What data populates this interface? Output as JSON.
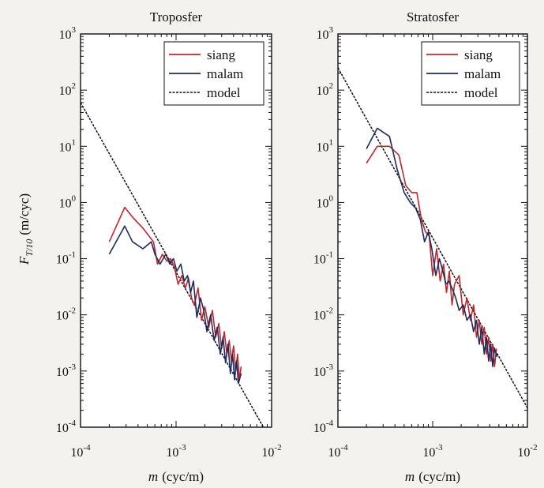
{
  "y_axis_label": {
    "symbol": "F",
    "subscript": "T/10",
    "unit": "(m/cyc)"
  },
  "chart_data": [
    {
      "type": "line",
      "title": "Troposfer",
      "xlabel": {
        "symbol": "m",
        "unit": "(cyc/m)"
      },
      "x_scale": "log",
      "y_scale": "log",
      "xlim": [
        0.0001,
        0.01
      ],
      "ylim": [
        0.0001,
        1000
      ],
      "x_ticks": [
        {
          "mantissa": "10",
          "exponent": "-4"
        },
        {
          "mantissa": "10",
          "exponent": "-3"
        },
        {
          "mantissa": "10",
          "exponent": "-2"
        }
      ],
      "y_ticks": [
        {
          "mantissa": "10",
          "exponent": "-4"
        },
        {
          "mantissa": "10",
          "exponent": "-3"
        },
        {
          "mantissa": "10",
          "exponent": "-2"
        },
        {
          "mantissa": "10",
          "exponent": "-1"
        },
        {
          "mantissa": "10",
          "exponent": "0"
        },
        {
          "mantissa": "10",
          "exponent": "1"
        },
        {
          "mantissa": "10",
          "exponent": "2"
        },
        {
          "mantissa": "10",
          "exponent": "3"
        }
      ],
      "legend": {
        "position": "top-right",
        "entries": [
          "siang",
          "malam",
          "model"
        ]
      },
      "series": [
        {
          "name": "siang",
          "color": "#c0262b",
          "style": "solid",
          "x": [
            0.0002,
            0.00029,
            0.00035,
            0.00045,
            0.00058,
            0.00064,
            0.00072,
            0.0008,
            0.00088,
            0.00096,
            0.00105,
            0.00115,
            0.00125,
            0.00135,
            0.00145,
            0.00155,
            0.0017,
            0.00185,
            0.002,
            0.0022,
            0.0024,
            0.0026,
            0.0028,
            0.003,
            0.0032,
            0.0034,
            0.0036,
            0.0038,
            0.004,
            0.0042,
            0.0044,
            0.0046,
            0.0048
          ],
          "y": [
            0.2,
            0.82,
            0.55,
            0.35,
            0.2,
            0.08,
            0.12,
            0.09,
            0.1,
            0.07,
            0.035,
            0.05,
            0.03,
            0.045,
            0.02,
            0.015,
            0.03,
            0.008,
            0.014,
            0.006,
            0.012,
            0.004,
            0.007,
            0.0025,
            0.005,
            0.002,
            0.0035,
            0.0015,
            0.0028,
            0.001,
            0.002,
            0.0007,
            0.0012
          ]
        },
        {
          "name": "malam",
          "color": "#1d2a5c",
          "style": "solid",
          "x": [
            0.0002,
            0.00029,
            0.00035,
            0.00045,
            0.00055,
            0.0006,
            0.00068,
            0.00078,
            0.00086,
            0.00094,
            0.00102,
            0.00112,
            0.00122,
            0.00132,
            0.00142,
            0.00152,
            0.00165,
            0.0018,
            0.00195,
            0.0021,
            0.0023,
            0.0025,
            0.0027,
            0.0029,
            0.0031,
            0.0033,
            0.0035,
            0.0037,
            0.0039,
            0.0041,
            0.0043,
            0.0045,
            0.0048
          ],
          "y": [
            0.12,
            0.38,
            0.2,
            0.15,
            0.2,
            0.12,
            0.08,
            0.12,
            0.08,
            0.1,
            0.06,
            0.08,
            0.04,
            0.05,
            0.025,
            0.04,
            0.009,
            0.02,
            0.012,
            0.005,
            0.01,
            0.0035,
            0.006,
            0.002,
            0.004,
            0.0014,
            0.003,
            0.0009,
            0.002,
            0.0007,
            0.0015,
            0.0006,
            0.0009
          ]
        },
        {
          "name": "model",
          "color": "#111111",
          "style": "dashed",
          "x": [
            0.0001,
            0.0082
          ],
          "y": [
            60,
            0.0001
          ]
        }
      ]
    },
    {
      "type": "line",
      "title": "Stratosfer",
      "xlabel": {
        "symbol": "m",
        "unit": "(cyc/m)"
      },
      "x_scale": "log",
      "y_scale": "log",
      "xlim": [
        0.0001,
        0.01
      ],
      "ylim": [
        0.0001,
        1000
      ],
      "x_ticks": [
        {
          "mantissa": "10",
          "exponent": "-4"
        },
        {
          "mantissa": "10",
          "exponent": "-3"
        },
        {
          "mantissa": "10",
          "exponent": "-2"
        }
      ],
      "y_ticks": [
        {
          "mantissa": "10",
          "exponent": "-4"
        },
        {
          "mantissa": "10",
          "exponent": "-3"
        },
        {
          "mantissa": "10",
          "exponent": "-2"
        },
        {
          "mantissa": "10",
          "exponent": "-1"
        },
        {
          "mantissa": "10",
          "exponent": "0"
        },
        {
          "mantissa": "10",
          "exponent": "1"
        },
        {
          "mantissa": "10",
          "exponent": "2"
        },
        {
          "mantissa": "10",
          "exponent": "3"
        }
      ],
      "legend": {
        "position": "top-right",
        "entries": [
          "siang",
          "malam",
          "model"
        ]
      },
      "series": [
        {
          "name": "siang",
          "color": "#c0262b",
          "style": "solid",
          "x": [
            0.0002,
            0.00026,
            0.00035,
            0.00044,
            0.00052,
            0.0006,
            0.00068,
            0.00076,
            0.00084,
            0.00092,
            0.001,
            0.0011,
            0.0012,
            0.0013,
            0.0014,
            0.0015,
            0.0016,
            0.0017,
            0.0019,
            0.0021,
            0.0023,
            0.0025,
            0.0027,
            0.0029,
            0.0031,
            0.0033,
            0.0035,
            0.0037,
            0.0039,
            0.0041,
            0.0043,
            0.0045,
            0.0047
          ],
          "y": [
            5,
            10,
            10,
            7,
            2,
            1.5,
            1.5,
            0.5,
            0.3,
            0.25,
            0.05,
            0.15,
            0.04,
            0.08,
            0.025,
            0.06,
            0.015,
            0.035,
            0.05,
            0.01,
            0.02,
            0.008,
            0.015,
            0.004,
            0.008,
            0.003,
            0.006,
            0.002,
            0.004,
            0.0015,
            0.003,
            0.0012,
            0.0025
          ]
        },
        {
          "name": "malam",
          "color": "#1d2a5c",
          "style": "solid",
          "x": [
            0.0002,
            0.00026,
            0.00035,
            0.00042,
            0.0005,
            0.00058,
            0.00066,
            0.00074,
            0.00082,
            0.0009,
            0.00098,
            0.00108,
            0.00118,
            0.00128,
            0.00138,
            0.00148,
            0.0016,
            0.00175,
            0.0019,
            0.0021,
            0.0023,
            0.0025,
            0.0027,
            0.0029,
            0.0031,
            0.0033,
            0.0035,
            0.0037,
            0.0039,
            0.0041,
            0.0043,
            0.0045,
            0.0048
          ],
          "y": [
            9,
            21,
            15,
            4,
            1.5,
            1,
            0.8,
            0.5,
            0.2,
            0.3,
            0.15,
            0.05,
            0.1,
            0.06,
            0.035,
            0.04,
            0.03,
            0.02,
            0.012,
            0.015,
            0.008,
            0.01,
            0.005,
            0.008,
            0.003,
            0.006,
            0.002,
            0.004,
            0.0015,
            0.003,
            0.0012,
            0.0025,
            0.0018
          ]
        },
        {
          "name": "model",
          "color": "#111111",
          "style": "dashed",
          "x": [
            0.0001,
            0.01
          ],
          "y": [
            250,
            0.00022
          ]
        }
      ]
    }
  ]
}
